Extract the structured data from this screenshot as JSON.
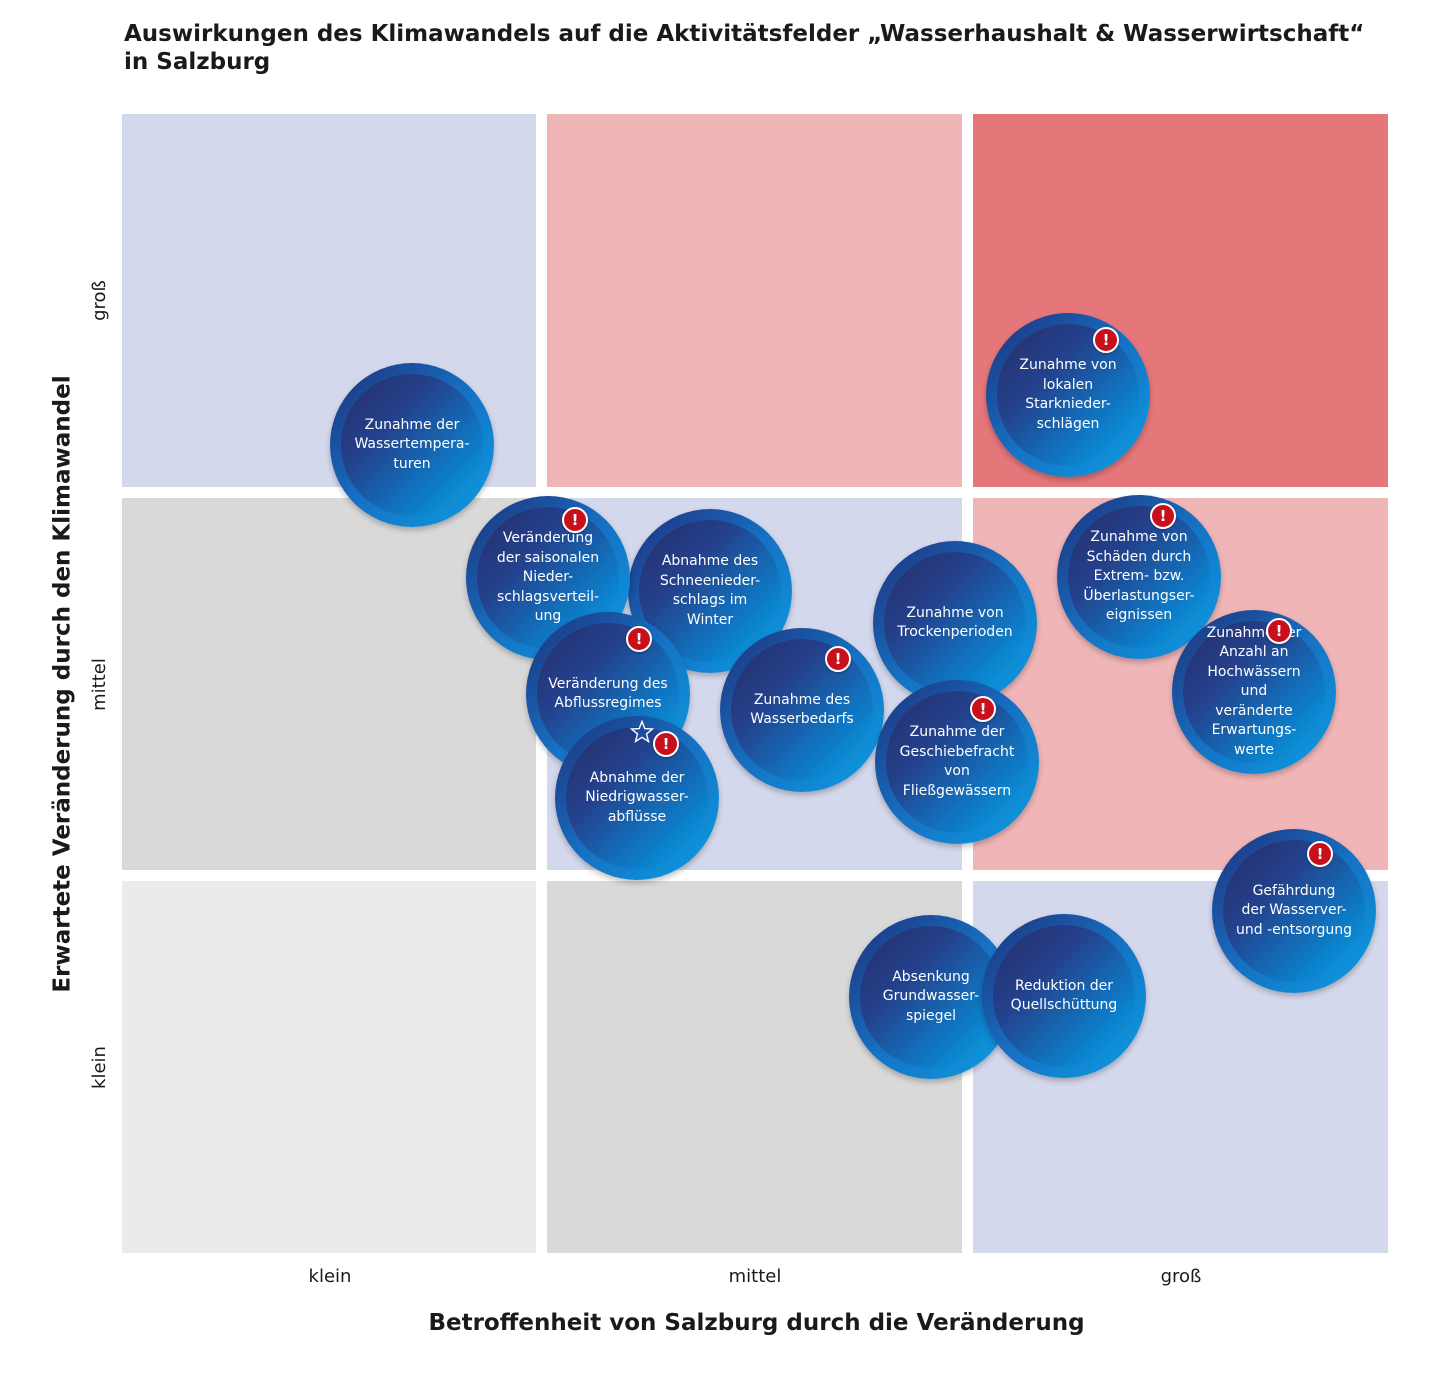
{
  "title": {
    "line1": "Auswirkungen des Klimawandels auf die Aktivitätsfelder „Wasserhaushalt & Wasserwirtschaft“",
    "line2": "in Salzburg"
  },
  "axes": {
    "x_title": "Betroffenheit von Salzburg durch die Veränderung",
    "y_title": "Erwartete Veränderung durch den Klimawandel",
    "x_levels": [
      "klein",
      "mittel",
      "groß"
    ],
    "y_levels": [
      "groß",
      "mittel",
      "klein"
    ]
  },
  "colors": {
    "lavender": "#d4d8ec",
    "light_pink": "#f0b5b7",
    "strong_red": "#e5777a",
    "light_gray": "#ebebeb",
    "mid_gray": "#d9d9d9",
    "alert_red": "#c8101d"
  },
  "matrix": {
    "rows": [
      [
        "lavender",
        "light_pink",
        "strong_red"
      ],
      [
        "mid_gray",
        "lavender",
        "light_pink"
      ],
      [
        "light_gray",
        "mid_gray",
        "lavender"
      ]
    ]
  },
  "bubbles": [
    {
      "id": "wassertemperaturen",
      "text": "Zunahme der\nWassertempera-\nturen",
      "alert": false,
      "star": false
    },
    {
      "id": "starkniederschlaege",
      "text": "Zunahme von\nlokalen\nStarknieder-\nschlägen",
      "alert": true,
      "star": false
    },
    {
      "id": "niederschlagsverteilung",
      "text": "Veränderung\nder saisonalen\nNieder-\nschlagsverteil-\nung",
      "alert": true,
      "star": false
    },
    {
      "id": "schneeniederschlag",
      "text": "Abnahme des\nSchneenieder-\nschlags im\nWinter",
      "alert": false,
      "star": false
    },
    {
      "id": "abflussregime",
      "text": "Veränderung des\nAbflussregimes",
      "alert": true,
      "star": false
    },
    {
      "id": "niedrigwasserabfluesse",
      "text": "Abnahme der\nNiedrigwasser-\nabflüsse",
      "alert": true,
      "star": true
    },
    {
      "id": "wasserbedarf",
      "text": "Zunahme des\nWasserbedarfs",
      "alert": true,
      "star": false
    },
    {
      "id": "trockenperioden",
      "text": "Zunahme von\nTrockenperioden",
      "alert": false,
      "star": false
    },
    {
      "id": "geschiebefracht",
      "text": "Zunahme der\nGeschiebefracht\nvon\nFließgewässern",
      "alert": true,
      "star": false
    },
    {
      "id": "extremereignisse",
      "text": "Zunahme von\nSchäden durch\nExtrem- bzw.\nÜberlastungser-\neignissen",
      "alert": true,
      "star": false
    },
    {
      "id": "hochwaesser",
      "text": "Zunahme der\nAnzahl an\nHochwässern und\nveränderte\nErwartungs-\nwerte",
      "alert": true,
      "star": false
    },
    {
      "id": "wasserversorgung",
      "text": "Gefährdung\nder Wasserver-\nund -entsorgung",
      "alert": true,
      "star": false
    },
    {
      "id": "grundwasserspiegel",
      "text": "Absenkung\nGrundwasser-\nspiegel",
      "alert": false,
      "star": false
    },
    {
      "id": "quellschuettung",
      "text": "Reduktion der\nQuellschüttung",
      "alert": false,
      "star": false
    }
  ],
  "alert_icon": "exclamation-icon",
  "star_icon": "star-icon"
}
